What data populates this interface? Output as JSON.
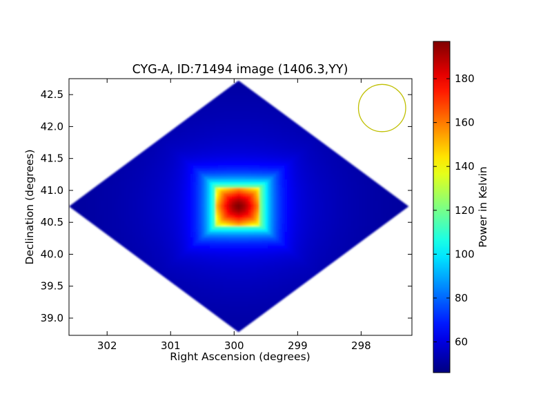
{
  "chart_data": {
    "type": "heatmap",
    "title": "CYG-A, ID:71494 image (1406.3,YY)",
    "xlabel": "Right Ascension (degrees)",
    "ylabel": "Declination (degrees)",
    "xlim": [
      302.6,
      297.2
    ],
    "ylim": [
      38.73,
      42.75
    ],
    "x_ticks": [
      302,
      301,
      300,
      299,
      298
    ],
    "y_ticks": [
      39.0,
      39.5,
      40.0,
      40.5,
      41.0,
      41.5,
      42.0,
      42.5
    ],
    "x_tick_labels": [
      "302",
      "301",
      "300",
      "299",
      "298"
    ],
    "y_tick_labels": [
      "39.0",
      "39.5",
      "40.0",
      "40.5",
      "41.0",
      "41.5",
      "42.0",
      "42.5"
    ],
    "colormap": "jet",
    "colorbar": {
      "label": "Power in Kelvin",
      "range": [
        46,
        197
      ],
      "ticks": [
        60,
        80,
        100,
        120,
        140,
        160,
        180
      ],
      "tick_labels": [
        "60",
        "80",
        "100",
        "120",
        "140",
        "160",
        "180"
      ]
    },
    "coverage_region": {
      "shape": "diamond",
      "vertices": [
        {
          "ra": 299.93,
          "dec": 42.72
        },
        {
          "ra": 297.25,
          "dec": 40.75
        },
        {
          "ra": 299.93,
          "dec": 38.78
        },
        {
          "ra": 302.6,
          "dec": 40.75
        }
      ],
      "background_power": 50
    },
    "source": {
      "ra": 299.93,
      "dec": 40.75,
      "peak_power": 197,
      "half_width_ra": 0.35,
      "half_width_dec": 0.3,
      "wing_power_floor": 110
    },
    "beam_circle": {
      "ra": 297.67,
      "dec": 42.29,
      "radius_deg": 0.37,
      "color": "#bfbf00"
    }
  }
}
